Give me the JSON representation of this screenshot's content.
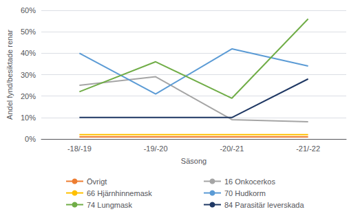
{
  "chart_data": {
    "type": "line",
    "categories": [
      "-18/-19",
      "-19/-20",
      "-20/-21",
      "-21/-22"
    ],
    "series": [
      {
        "name": "Övrigt",
        "color": "#ED7D31",
        "values": [
          1,
          1,
          1,
          1
        ]
      },
      {
        "name": "16 Onkocerkos",
        "color": "#A5A5A5",
        "values": [
          25,
          29,
          9,
          8
        ]
      },
      {
        "name": "66 Hjärnhinnemask",
        "color": "#FFC000",
        "values": [
          2,
          2,
          2,
          2
        ]
      },
      {
        "name": "70 Hudkorm",
        "color": "#5B9BD5",
        "values": [
          40,
          21,
          42,
          34
        ]
      },
      {
        "name": "74 Lungmask",
        "color": "#70AD47",
        "values": [
          22,
          36,
          19,
          56
        ]
      },
      {
        "name": "84 Parasitär leverskada",
        "color": "#1F3864",
        "values": [
          10,
          10,
          10,
          28
        ]
      }
    ],
    "xlabel": "Säsong",
    "ylabel": "Andel fynd/besiktade renar",
    "ylim": [
      0,
      60
    ],
    "yticks": [
      {
        "value": 0,
        "label": "0%"
      },
      {
        "value": 10,
        "label": "10%"
      },
      {
        "value": 20,
        "label": "20%"
      },
      {
        "value": 30,
        "label": "30%"
      },
      {
        "value": 40,
        "label": "40%"
      },
      {
        "value": 50,
        "label": "50%"
      },
      {
        "value": 60,
        "label": "60%"
      }
    ],
    "grid": true,
    "legend": "bottom"
  }
}
